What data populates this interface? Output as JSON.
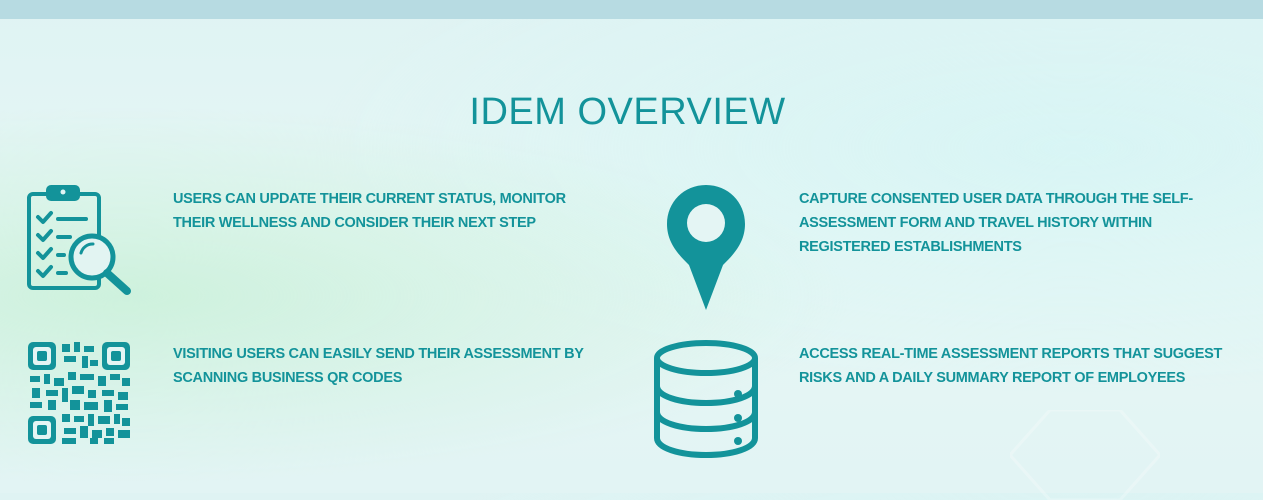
{
  "section": {
    "title": "IDEM OVERVIEW"
  },
  "features": [
    {
      "icon": "clipboard-search-icon",
      "text": "USERS CAN UPDATE THEIR CURRENT STATUS, MONITOR THEIR WELLNESS AND CONSIDER THEIR NEXT STEP"
    },
    {
      "icon": "map-pin-icon",
      "text": "CAPTURE CONSENTED USER DATA THROUGH THE SELF-ASSESSMENT FORM AND TRAVEL HISTORY WITHIN REGISTERED ESTABLISHMENTS"
    },
    {
      "icon": "qr-code-icon",
      "text": "VISITING USERS CAN EASILY SEND THEIR ASSESSMENT BY SCANNING BUSINESS QR CODES"
    },
    {
      "icon": "database-icon",
      "text": "ACCESS REAL-TIME ASSESSMENT REPORTS THAT SUGGEST RISKS AND A DAILY SUMMARY REPORT OF EMPLOYEES"
    }
  ],
  "colors": {
    "accent": "#13939a",
    "topbar": "#b7dbe2"
  }
}
